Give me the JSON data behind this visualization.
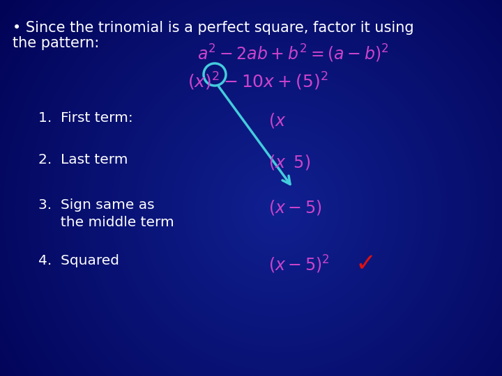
{
  "bg_color_center": "#1a3a9a",
  "bg_color_edge": "#000050",
  "white_text_color": "#FFFFFF",
  "magenta_color": "#CC44CC",
  "cyan_color": "#44CCDD",
  "red_color": "#DD1111",
  "bullet_line1": "• Since the trinomial is a perfect square, factor it using",
  "bullet_line2": "the pattern:",
  "item1_label": "1.  First term:",
  "item2_label": "2.  Last term",
  "item3_label": "3.  Sign same as",
  "item3_label2": "     the middle term",
  "item4_label": "4.  Squared",
  "checkmark": "✓"
}
